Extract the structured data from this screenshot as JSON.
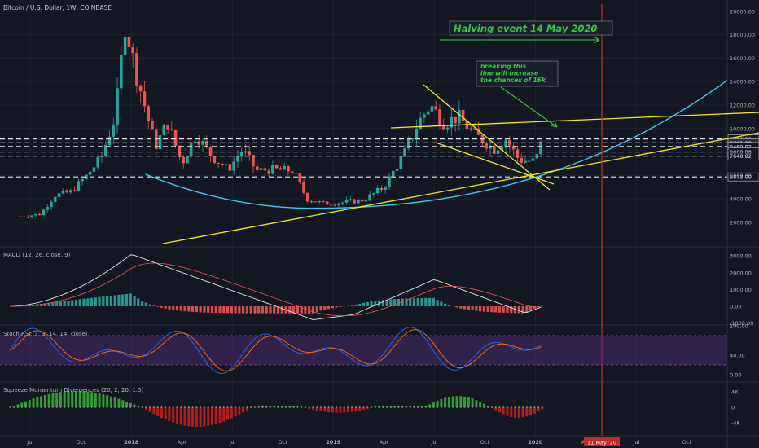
{
  "colors": {
    "background": "#131722",
    "grid": "#1e2230",
    "candle_up": "#26a69a",
    "candle_down": "#ef5350",
    "trendline": "#f5e61c",
    "arc": "#3ec8e8",
    "annotation": "#2ecc40",
    "halving_line": "#c62828",
    "stoch_band": "#4a2c6e",
    "macd_line": "#e0e3eb",
    "signal_line": "#ef5350",
    "stoch_k": "#2962ff",
    "stoch_d": "#ff6d00"
  },
  "chart_data": [
    {
      "type": "candlestick",
      "title": "Bitcoin / U.S. Dollar, 1W, COINBASE",
      "y_ticks": [
        "20000.00",
        "18000.00",
        "16000.00",
        "14000.00",
        "12000.00",
        "10000.00",
        "8000.00",
        "6000.00",
        "4000.00",
        "2000.00"
      ],
      "x_ticks": [
        "Jul",
        "Oct",
        "2018",
        "Apr",
        "Jul",
        "Oct",
        "2019",
        "Apr",
        "Jul",
        "Oct",
        "2020",
        "Apr",
        "Jul",
        "Oct"
      ],
      "current_price": "8781.38",
      "horizontal_levels": [
        {
          "price": 9108.38,
          "label": "9108.38"
        },
        {
          "price": 8781.38,
          "label": "8781.38"
        },
        {
          "price": 8469.02,
          "label": "8469.02"
        },
        {
          "price": 8002.21,
          "label": "8002.21"
        },
        {
          "price": 7648.82,
          "label": "7648.82"
        },
        {
          "price": 5873.0,
          "label": "5873.00"
        }
      ],
      "annotations": {
        "halving": "Halving event 14 May 2020",
        "breakout_note": [
          "breaking this",
          "line will increase",
          "the chances of 16k"
        ],
        "halving_date_label": "11 May '20"
      },
      "weekly_close_path": [
        [
          2017.45,
          2500
        ],
        [
          2017.55,
          2700
        ],
        [
          2017.62,
          4300
        ],
        [
          2017.7,
          4600
        ],
        [
          2017.78,
          6000
        ],
        [
          2017.85,
          7500
        ],
        [
          2017.92,
          11000
        ],
        [
          2017.97,
          19000
        ],
        [
          2018.02,
          15000
        ],
        [
          2018.08,
          11000
        ],
        [
          2018.12,
          8500
        ],
        [
          2018.18,
          10500
        ],
        [
          2018.25,
          7000
        ],
        [
          2018.32,
          9500
        ],
        [
          2018.4,
          7600
        ],
        [
          2018.48,
          6500
        ],
        [
          2018.55,
          8200
        ],
        [
          2018.62,
          6400
        ],
        [
          2018.7,
          6500
        ],
        [
          2018.8,
          6400
        ],
        [
          2018.87,
          4000
        ],
        [
          2018.95,
          3600
        ],
        [
          2019.05,
          3700
        ],
        [
          2019.15,
          3900
        ],
        [
          2019.25,
          5000
        ],
        [
          2019.35,
          7800
        ],
        [
          2019.42,
          10500
        ],
        [
          2019.48,
          12000
        ],
        [
          2019.55,
          10500
        ],
        [
          2019.62,
          11000
        ],
        [
          2019.7,
          9500
        ],
        [
          2019.8,
          8200
        ],
        [
          2019.85,
          9200
        ],
        [
          2019.92,
          7300
        ],
        [
          2020.0,
          7200
        ],
        [
          2020.03,
          8800
        ]
      ]
    },
    {
      "type": "line",
      "title": "MACD (12, 26, close, 9)",
      "y_ticks": [
        "3000.00",
        "2000.00",
        "1000.00",
        "0.00",
        "-1000.00"
      ]
    },
    {
      "type": "line",
      "title": "Stoch RSI (3, 3, 14, 14, close)",
      "y_ticks": [
        "100.00",
        "40.00",
        "0.00"
      ]
    },
    {
      "type": "bar",
      "title": "Squeeze Momentum Divergences (20, 2, 20, 1.5)",
      "y_ticks": [
        "4K",
        "0",
        "-4K"
      ]
    }
  ]
}
